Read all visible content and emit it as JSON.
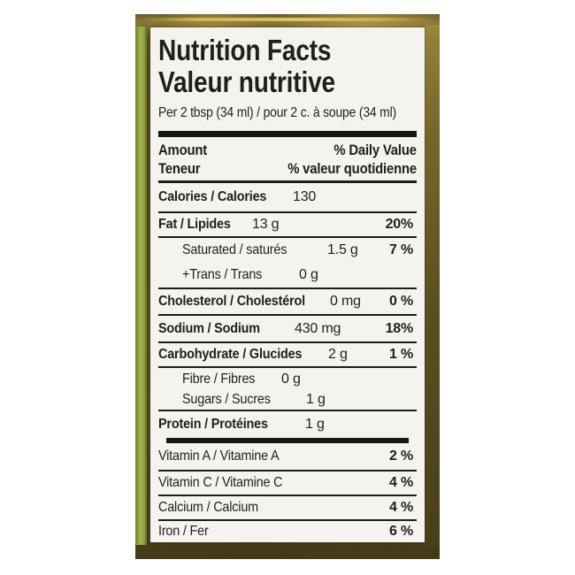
{
  "colors": {
    "page": "#ffffff",
    "olive": "#4e431c",
    "gold": "#8a7733",
    "green": "#93a33f",
    "label_bg": "#f4f3ef",
    "ink": "#1f1f1d"
  },
  "label": {
    "title_en": "Nutrition Facts",
    "title_fr": "Valeur nutritive",
    "serving": "Per 2 tbsp (34 ml) / pour 2 c. à soupe (34 ml)",
    "header": {
      "amount_en": "Amount",
      "dv_en": "% Daily Value",
      "amount_fr": "Teneur",
      "dv_fr": "% valeur quotidienne"
    },
    "rows": [
      {
        "name": "Calories / Calories",
        "amount": "130",
        "pct": ""
      },
      {
        "name": "Fat / Lipides",
        "amount": "13 g",
        "pct": "20%"
      },
      {
        "name": "Saturated / saturés",
        "amount": "1.5 g",
        "pct": "7 %"
      },
      {
        "name": "+Trans / Trans",
        "amount": "0 g",
        "pct": ""
      },
      {
        "name": "Cholesterol / Cholestérol",
        "amount": "0 mg",
        "pct": "0 %"
      },
      {
        "name": "Sodium / Sodium",
        "amount": "430 mg",
        "pct": "18%"
      },
      {
        "name": "Carbohydrate / Glucides",
        "amount": "2 g",
        "pct": "1 %"
      },
      {
        "name": "Fibre / Fibres",
        "amount": "0 g",
        "pct": ""
      },
      {
        "name": "Sugars / Sucres",
        "amount": "1 g",
        "pct": ""
      },
      {
        "name": "Protein / Protéines",
        "amount": "1 g",
        "pct": ""
      },
      {
        "name": "Vitamin A / Vitamine A",
        "amount": "",
        "pct": "2 %"
      },
      {
        "name": "Vitamin C / Vitamine C",
        "amount": "",
        "pct": "4 %"
      },
      {
        "name": "Calcium / Calcium",
        "amount": "",
        "pct": "4 %"
      },
      {
        "name": "Iron / Fer",
        "amount": "",
        "pct": "6 %"
      }
    ]
  }
}
